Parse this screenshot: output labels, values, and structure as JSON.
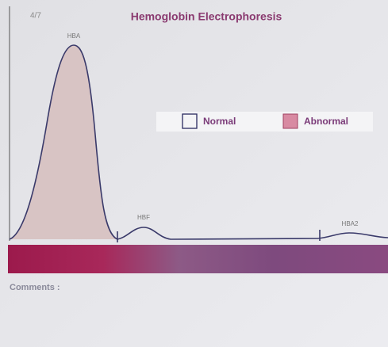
{
  "header": {
    "page": "4/7",
    "title": "Hemoglobin Electrophoresis"
  },
  "peaks": [
    "HBA",
    "HBF",
    "HBA2"
  ],
  "legend": [
    "Normal",
    "Abnormal"
  ],
  "comments": "Comments :"
}
